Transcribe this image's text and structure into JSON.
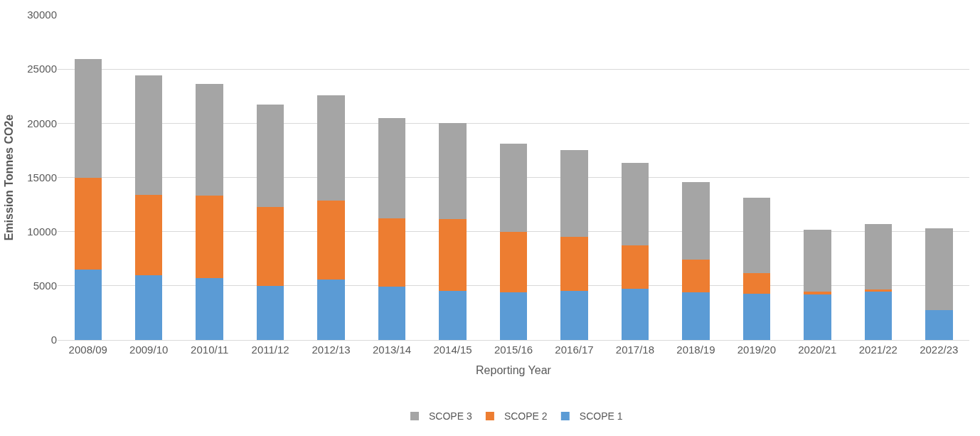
{
  "chart_data": {
    "type": "bar",
    "stacked": true,
    "xlabel": "Reporting Year",
    "ylabel": "Emission Tonnes CO2e",
    "categories": [
      "2008/09",
      "2009/10",
      "2010/11",
      "2011/12",
      "2012/13",
      "2013/14",
      "2014/15",
      "2015/16",
      "2016/17",
      "2017/18",
      "2018/19",
      "2019/20",
      "2020/21",
      "2021/22",
      "2022/23"
    ],
    "series": [
      {
        "name": "SCOPE 1",
        "color": "#5b9bd5",
        "values": [
          6500,
          6000,
          5700,
          5000,
          5600,
          4900,
          4500,
          4400,
          4500,
          4700,
          4400,
          4300,
          4200,
          4450,
          2750
        ]
      },
      {
        "name": "SCOPE 2",
        "color": "#ed7d31",
        "values": [
          8500,
          7400,
          7650,
          7300,
          7250,
          6350,
          6650,
          5600,
          5000,
          4000,
          3000,
          1900,
          250,
          200,
          0
        ]
      },
      {
        "name": "SCOPE 3",
        "color": "#a5a5a5",
        "values": [
          10950,
          11000,
          10300,
          9400,
          9700,
          9250,
          8850,
          8150,
          8000,
          7650,
          7200,
          6900,
          5700,
          6050,
          7550
        ]
      }
    ],
    "ylim": [
      0,
      30000
    ],
    "yticks": [
      0,
      5000,
      10000,
      15000,
      20000,
      25000,
      30000
    ],
    "grid": "y",
    "legend": "bottom"
  }
}
